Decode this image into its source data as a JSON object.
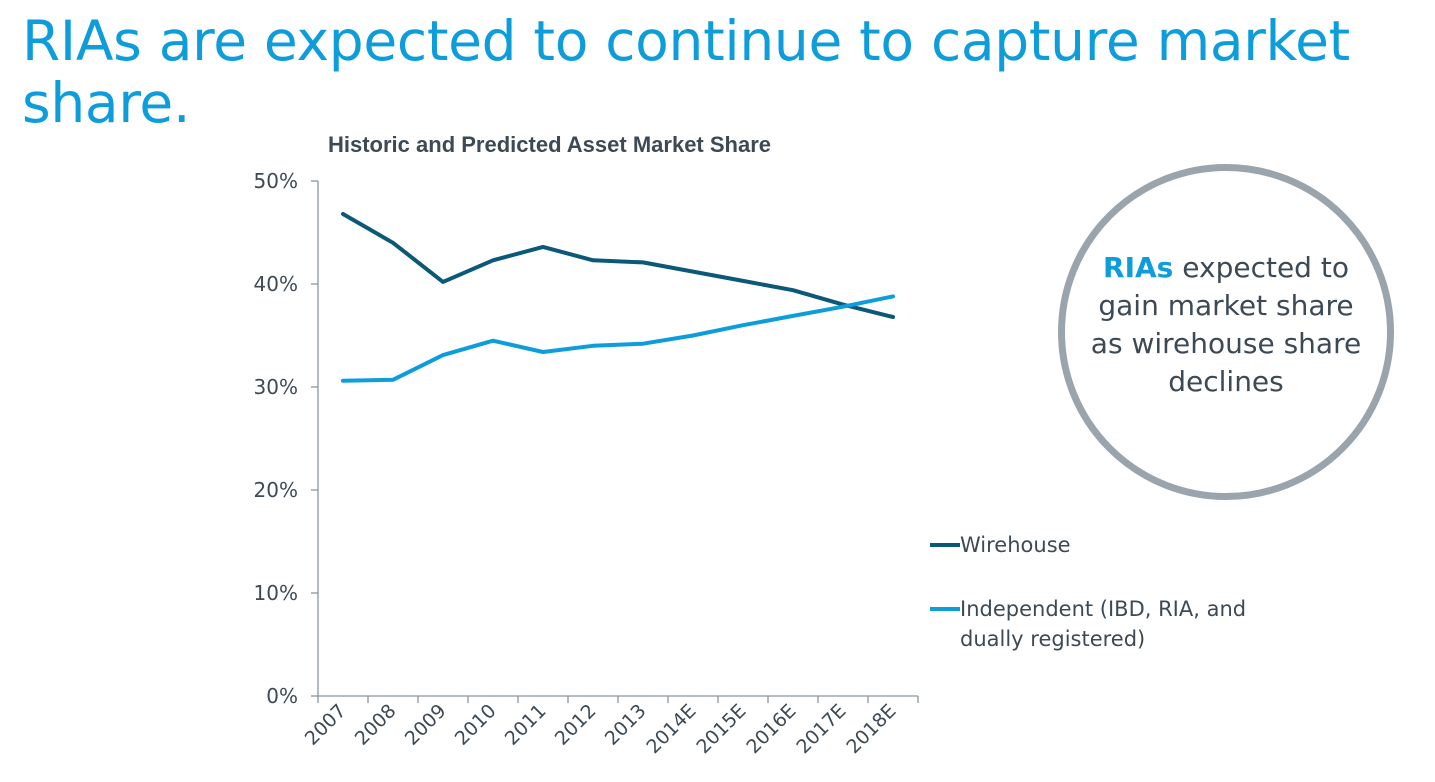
{
  "slide": {
    "title": "RIAs are expected to continue to capture market share."
  },
  "callout": {
    "strong": "RIAs",
    "text": " expected to gain market share as wirehouse share declines"
  },
  "colors": {
    "title": "#0d9ddb",
    "wirehouse": "#0b5878",
    "independent": "#0d9ddb",
    "axis": "#8a96a0",
    "text": "#3d4a55",
    "circle": "#9aa4ad"
  },
  "chart_data": {
    "type": "line",
    "title": "Historic and Predicted Asset Market Share",
    "xlabel": "",
    "ylabel": "",
    "categories": [
      "2007",
      "2008",
      "2009",
      "2010",
      "2011",
      "2012",
      "2013",
      "2014E",
      "2015E",
      "2016E",
      "2017E",
      "2018E"
    ],
    "ylim": [
      0,
      50
    ],
    "yticks": [
      0,
      10,
      20,
      30,
      40,
      50
    ],
    "ytick_labels": [
      "0%",
      "10%",
      "20%",
      "30%",
      "40%",
      "50%"
    ],
    "grid": false,
    "legend_position": "right",
    "series": [
      {
        "name": "Wirehouse",
        "values": [
          46.8,
          44.0,
          40.2,
          42.3,
          43.6,
          42.3,
          42.1,
          41.2,
          40.3,
          39.4,
          38.0,
          36.8
        ]
      },
      {
        "name": "Independent (IBD, RIA, and dually registered)",
        "values": [
          30.6,
          30.7,
          33.1,
          34.5,
          33.4,
          34.0,
          34.2,
          35.0,
          36.0,
          36.9,
          37.8,
          38.8
        ]
      }
    ]
  }
}
